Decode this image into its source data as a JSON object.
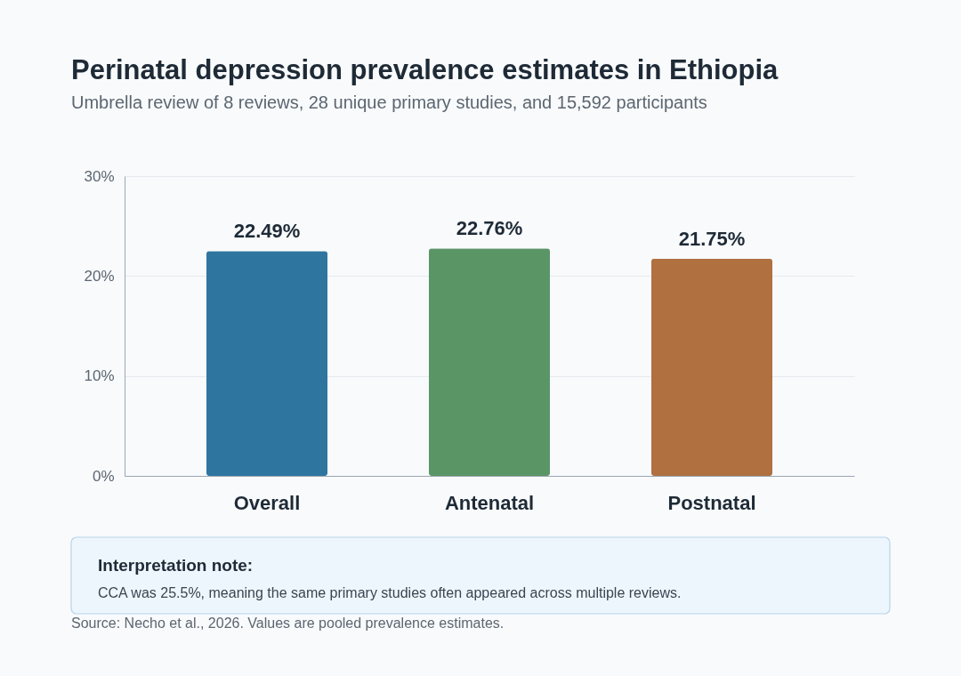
{
  "chart_data": {
    "type": "bar",
    "title": "Perinatal depression prevalence estimates in Ethiopia",
    "subtitle": "Umbrella review of 8 reviews, 28 unique primary studies, and 15,592 participants",
    "categories": [
      "Overall",
      "Antenatal",
      "Postnatal"
    ],
    "values": [
      22.49,
      22.76,
      21.75
    ],
    "colors": [
      "#2e76a0",
      "#5a9566",
      "#b07040"
    ],
    "value_labels": [
      "22.49%",
      "22.76%",
      "21.75%"
    ],
    "ylim": [
      0,
      30
    ],
    "yticks": [
      {
        "value": 0,
        "label": "0%"
      },
      {
        "value": 10,
        "label": "10%"
      },
      {
        "value": 20,
        "label": "20%"
      },
      {
        "value": 30,
        "label": "30%"
      }
    ],
    "grid": "y",
    "annotations": [
      "Interpretation note:",
      "CCA was 25.5%, meaning the same primary studies often appeared across multiple reviews.",
      "Source: Necho et al., 2026. Values are pooled prevalence estimates."
    ]
  }
}
